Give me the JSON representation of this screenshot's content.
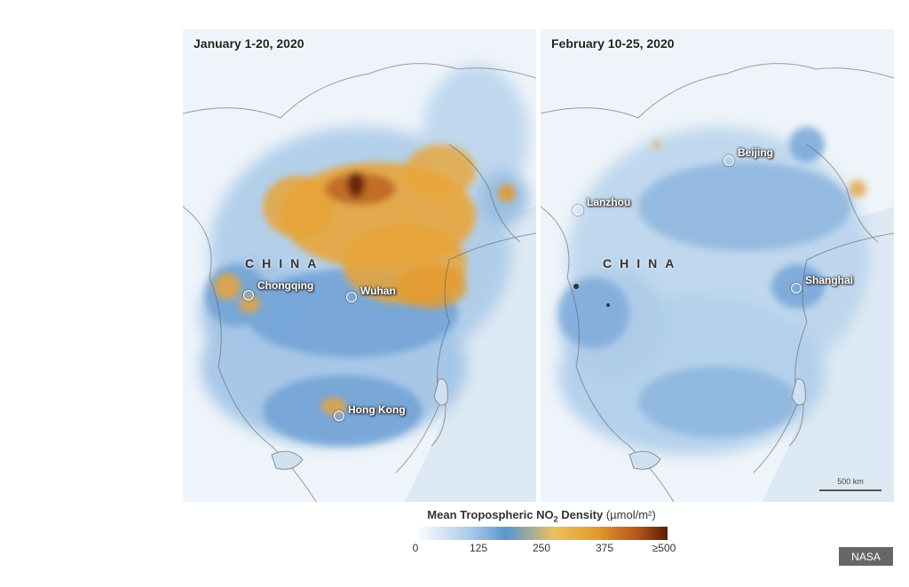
{
  "panels": [
    {
      "title": "January 1-20, 2020",
      "country_label": "CHINA",
      "cities": [
        "Chongqing",
        "Wuhan",
        "Hong Kong"
      ]
    },
    {
      "title": "February 10-25, 2020",
      "country_label": "CHINA",
      "cities": [
        "Beijing",
        "Lanzhou",
        "Shanghai"
      ],
      "scalebar": "500 km"
    }
  ],
  "legend": {
    "title": "Mean Tropospheric NO",
    "subscript": "2",
    "title_suffix": " Density",
    "unit": "(µmol/m²)",
    "ticks": [
      "0",
      "125",
      "250",
      "375",
      "≥500"
    ]
  },
  "credit": "NASA",
  "colors": {
    "low": "#ffffff",
    "mid": "#5b95cf",
    "high": "#e49a2c",
    "max": "#5b1c08"
  }
}
